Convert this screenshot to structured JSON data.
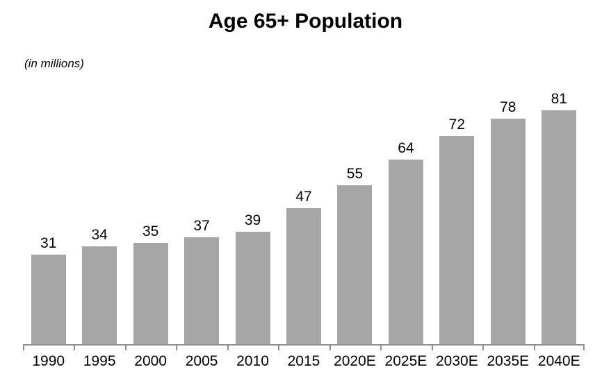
{
  "chart_data": {
    "type": "bar",
    "title": "Age 65+ Population",
    "units_note": "(in millions)",
    "categories": [
      "1990",
      "1995",
      "2000",
      "2005",
      "2010",
      "2015",
      "2020E",
      "2025E",
      "2030E",
      "2035E",
      "2040E"
    ],
    "values": [
      31,
      34,
      35,
      37,
      39,
      47,
      55,
      64,
      72,
      78,
      81
    ],
    "xlabel": "",
    "ylabel": "",
    "ylim": [
      0,
      81
    ],
    "grid": false,
    "legend_position": "none",
    "bar_color": "#A6A6A6",
    "axis_color": "#8F8F8F",
    "text_color": "#000000",
    "background_color": "#FFFFFF"
  }
}
